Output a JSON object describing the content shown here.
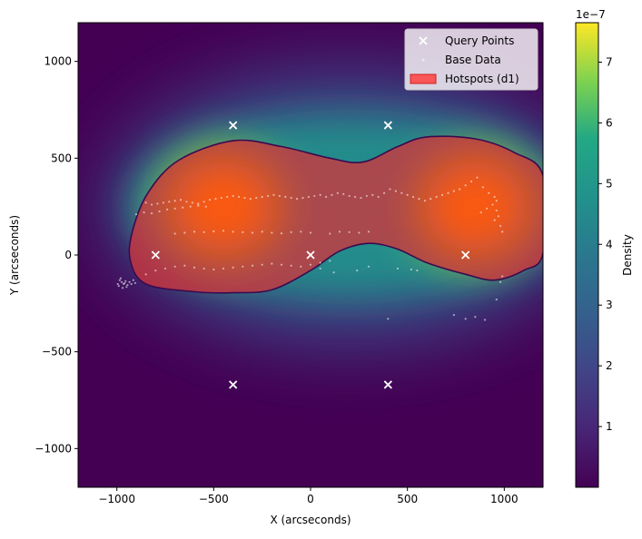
{
  "chart_data": {
    "type": "heatmap",
    "xlabel": "X (arcseconds)",
    "ylabel": "Y (arcseconds)",
    "xlim": [
      -1200,
      1200
    ],
    "ylim": [
      -1200,
      1200
    ],
    "xticks": [
      -1000,
      -500,
      0,
      500,
      1000
    ],
    "yticks": [
      -1000,
      -500,
      0,
      500,
      1000
    ],
    "xtick_labels": [
      "−1000",
      "−500",
      "0",
      "500",
      "1000"
    ],
    "ytick_labels": [
      "−1000",
      "−500",
      "0",
      "500",
      "1000"
    ],
    "grid": false,
    "legend": {
      "placement": "top-right",
      "entries": [
        {
          "label": "Query Points",
          "marker": "x",
          "color": "#ffffff"
        },
        {
          "label": "Base Data",
          "marker": "dot",
          "color": "#ffffff"
        },
        {
          "label": "Hotspots (d1)",
          "marker": "patch",
          "color": "#ff4040"
        }
      ]
    },
    "colorbar": {
      "label": "Density",
      "multiplier": "1e−7",
      "min": 0,
      "max": 7.65,
      "ticks": [
        1,
        2,
        3,
        4,
        5,
        6,
        7
      ],
      "colormap": "viridis"
    },
    "density_centers": [
      {
        "x": -450,
        "y": 250
      },
      {
        "x": 850,
        "y": 250
      }
    ],
    "query_points": [
      {
        "x": -400,
        "y": 670
      },
      {
        "x": 400,
        "y": 670
      },
      {
        "x": -800,
        "y": 0
      },
      {
        "x": 0,
        "y": 0
      },
      {
        "x": 800,
        "y": 0
      },
      {
        "x": -400,
        "y": -670
      },
      {
        "x": 400,
        "y": -670
      }
    ],
    "hotspot_outline": [
      [
        -680,
        490
      ],
      [
        -400,
        590
      ],
      [
        -150,
        560
      ],
      [
        100,
        500
      ],
      [
        270,
        480
      ],
      [
        450,
        560
      ],
      [
        600,
        610
      ],
      [
        850,
        600
      ],
      [
        1050,
        530
      ],
      [
        1200,
        410
      ],
      [
        1200,
        10
      ],
      [
        1100,
        -80
      ],
      [
        950,
        -130
      ],
      [
        800,
        -100
      ],
      [
        600,
        -40
      ],
      [
        450,
        30
      ],
      [
        300,
        60
      ],
      [
        150,
        20
      ],
      [
        0,
        -80
      ],
      [
        -200,
        -180
      ],
      [
        -400,
        -195
      ],
      [
        -600,
        -190
      ],
      [
        -850,
        -150
      ],
      [
        -930,
        -30
      ],
      [
        -920,
        120
      ],
      [
        -840,
        320
      ]
    ],
    "base_data_points": [
      [
        -850,
        270
      ],
      [
        -820,
        260
      ],
      [
        -790,
        265
      ],
      [
        -760,
        270
      ],
      [
        -730,
        275
      ],
      [
        -700,
        280
      ],
      [
        -670,
        285
      ],
      [
        -640,
        275
      ],
      [
        -610,
        270
      ],
      [
        -580,
        265
      ],
      [
        -550,
        275
      ],
      [
        -520,
        285
      ],
      [
        -490,
        290
      ],
      [
        -460,
        295
      ],
      [
        -430,
        300
      ],
      [
        -400,
        305
      ],
      [
        -370,
        300
      ],
      [
        -340,
        295
      ],
      [
        -310,
        290
      ],
      [
        -280,
        295
      ],
      [
        -250,
        300
      ],
      [
        -220,
        305
      ],
      [
        -190,
        310
      ],
      [
        -160,
        305
      ],
      [
        -130,
        300
      ],
      [
        -100,
        295
      ],
      [
        -70,
        290
      ],
      [
        -40,
        295
      ],
      [
        -10,
        300
      ],
      [
        20,
        305
      ],
      [
        50,
        310
      ],
      [
        80,
        300
      ],
      [
        110,
        310
      ],
      [
        140,
        320
      ],
      [
        170,
        315
      ],
      [
        200,
        305
      ],
      [
        230,
        300
      ],
      [
        260,
        295
      ],
      [
        290,
        305
      ],
      [
        320,
        310
      ],
      [
        350,
        300
      ],
      [
        380,
        320
      ],
      [
        410,
        340
      ],
      [
        440,
        330
      ],
      [
        470,
        320
      ],
      [
        500,
        310
      ],
      [
        530,
        300
      ],
      [
        560,
        290
      ],
      [
        590,
        280
      ],
      [
        620,
        290
      ],
      [
        650,
        300
      ],
      [
        680,
        310
      ],
      [
        710,
        320
      ],
      [
        740,
        330
      ],
      [
        770,
        340
      ],
      [
        800,
        360
      ],
      [
        830,
        380
      ],
      [
        860,
        400
      ],
      [
        890,
        350
      ],
      [
        920,
        320
      ],
      [
        950,
        300
      ],
      [
        960,
        280
      ],
      [
        940,
        260
      ],
      [
        910,
        240
      ],
      [
        880,
        220
      ],
      [
        960,
        230
      ],
      [
        970,
        200
      ],
      [
        950,
        180
      ],
      [
        980,
        150
      ],
      [
        990,
        120
      ],
      [
        -900,
        210
      ],
      [
        -860,
        220
      ],
      [
        -820,
        215
      ],
      [
        -780,
        225
      ],
      [
        -740,
        235
      ],
      [
        -700,
        240
      ],
      [
        -660,
        245
      ],
      [
        -620,
        250
      ],
      [
        -580,
        255
      ],
      [
        -540,
        250
      ],
      [
        -700,
        110
      ],
      [
        -650,
        115
      ],
      [
        -600,
        120
      ],
      [
        -550,
        118
      ],
      [
        -500,
        122
      ],
      [
        -450,
        125
      ],
      [
        -400,
        120
      ],
      [
        -350,
        118
      ],
      [
        -300,
        115
      ],
      [
        -250,
        120
      ],
      [
        -200,
        115
      ],
      [
        -150,
        112
      ],
      [
        -100,
        118
      ],
      [
        -50,
        120
      ],
      [
        0,
        115
      ],
      [
        100,
        110
      ],
      [
        150,
        120
      ],
      [
        200,
        118
      ],
      [
        250,
        115
      ],
      [
        300,
        120
      ],
      [
        -850,
        -100
      ],
      [
        -800,
        -80
      ],
      [
        -750,
        -70
      ],
      [
        -700,
        -60
      ],
      [
        -650,
        -55
      ],
      [
        -600,
        -65
      ],
      [
        -550,
        -70
      ],
      [
        -500,
        -75
      ],
      [
        -450,
        -70
      ],
      [
        -400,
        -65
      ],
      [
        -350,
        -60
      ],
      [
        -300,
        -55
      ],
      [
        -250,
        -50
      ],
      [
        -200,
        -45
      ],
      [
        -150,
        -50
      ],
      [
        -100,
        -55
      ],
      [
        -50,
        -60
      ],
      [
        0,
        -50
      ],
      [
        50,
        -40
      ],
      [
        100,
        -30
      ],
      [
        -985,
        -130
      ],
      [
        -975,
        -140
      ],
      [
        -965,
        -150
      ],
      [
        -990,
        -160
      ],
      [
        -970,
        -170
      ],
      [
        -955,
        -135
      ],
      [
        -945,
        -155
      ],
      [
        -980,
        -120
      ],
      [
        -960,
        -145
      ],
      [
        -950,
        -165
      ],
      [
        -935,
        -140
      ],
      [
        -925,
        -150
      ],
      [
        -915,
        -130
      ],
      [
        -905,
        -145
      ],
      [
        -995,
        -150
      ],
      [
        50,
        -70
      ],
      [
        120,
        -90
      ],
      [
        240,
        -80
      ],
      [
        300,
        -60
      ],
      [
        450,
        -70
      ],
      [
        520,
        -75
      ],
      [
        550,
        -80
      ],
      [
        400,
        -330
      ],
      [
        740,
        -310
      ],
      [
        800,
        -330
      ],
      [
        850,
        -320
      ],
      [
        900,
        -335
      ],
      [
        960,
        -230
      ],
      [
        980,
        -140
      ],
      [
        990,
        -110
      ]
    ]
  }
}
